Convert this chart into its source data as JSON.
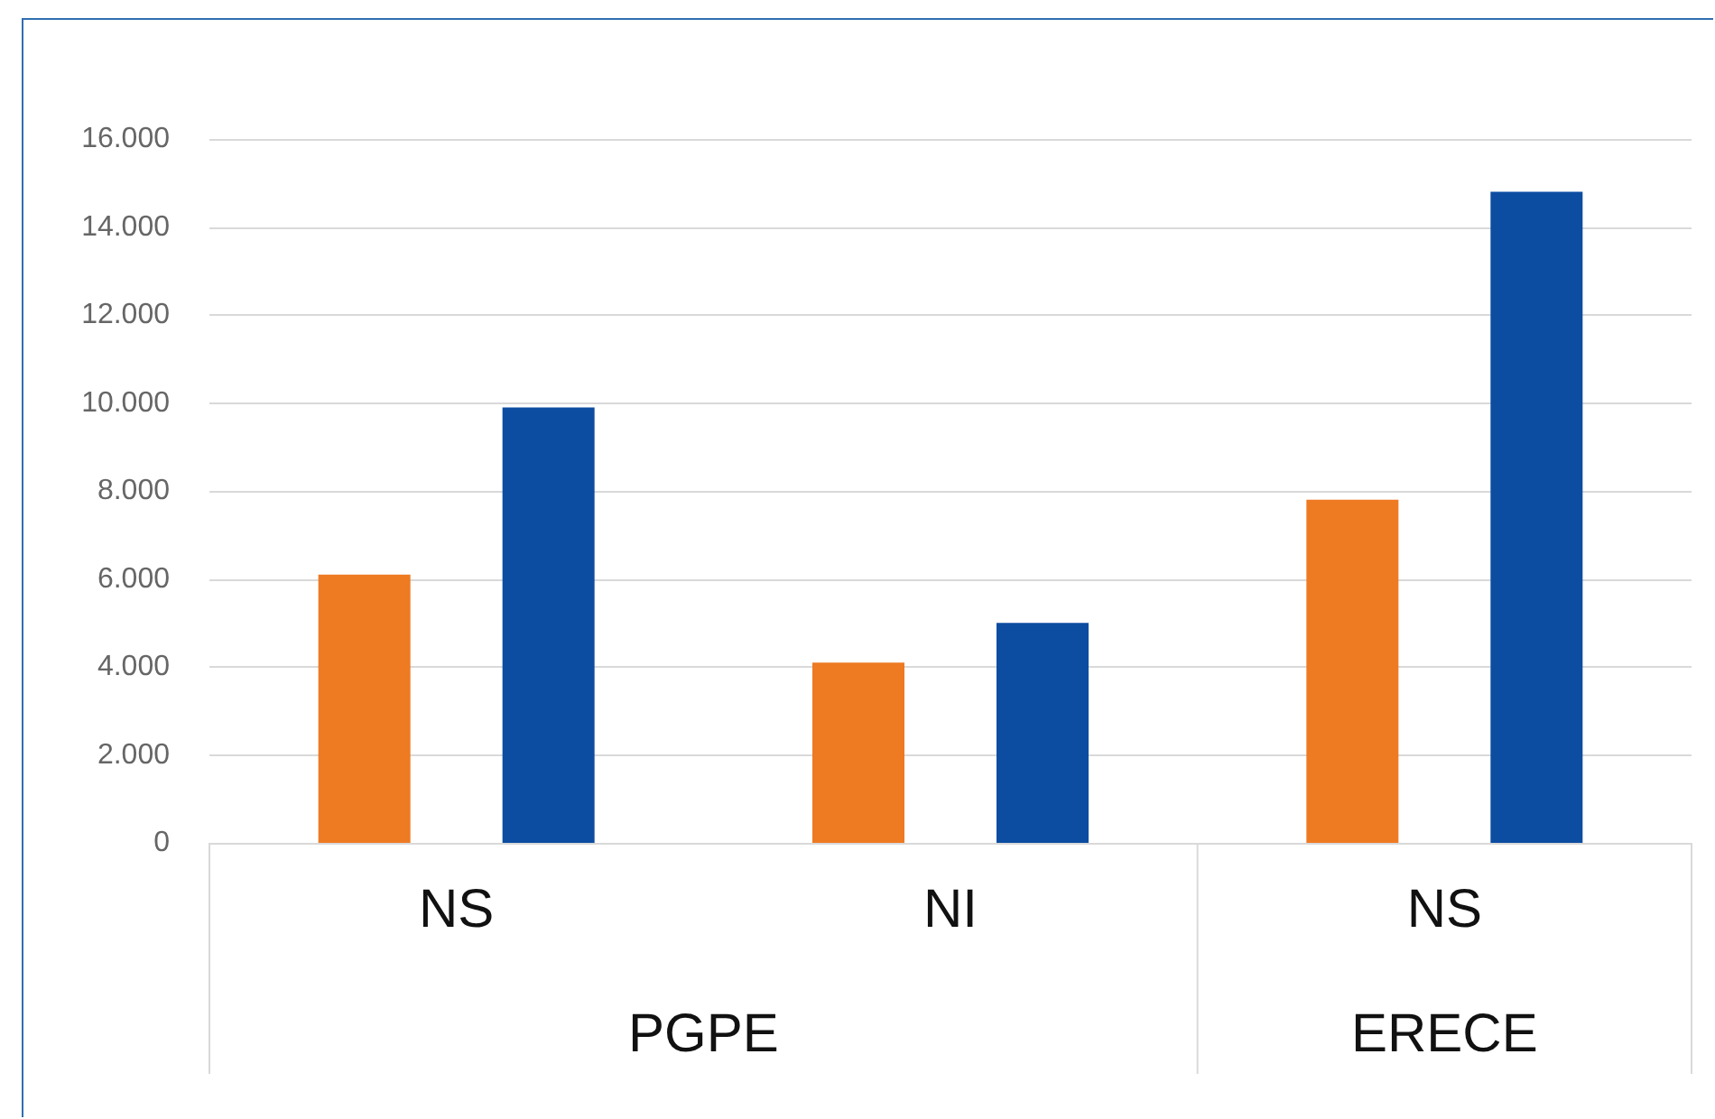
{
  "chart_data": {
    "type": "bar",
    "categories": [
      "NS",
      "NI",
      "NS"
    ],
    "series": [
      {
        "color": "#ee7a22",
        "values": [
          6100,
          4100,
          7800
        ]
      },
      {
        "color": "#0c4da2",
        "values": [
          9900,
          5000,
          14800
        ]
      }
    ],
    "ylim": [
      0,
      16000
    ],
    "yticks": [
      {
        "value": 0,
        "label": "0"
      },
      {
        "value": 2000,
        "label": "2.000"
      },
      {
        "value": 4000,
        "label": "4.000"
      },
      {
        "value": 6000,
        "label": "6.000"
      },
      {
        "value": 8000,
        "label": "8.000"
      },
      {
        "value": 10000,
        "label": "10.000"
      },
      {
        "value": 12000,
        "label": "12.000"
      },
      {
        "value": 14000,
        "label": "14.000"
      },
      {
        "value": 16000,
        "label": "16.000"
      }
    ],
    "annotations": [
      "PGPE",
      "ERECE"
    ],
    "grid": "y"
  }
}
